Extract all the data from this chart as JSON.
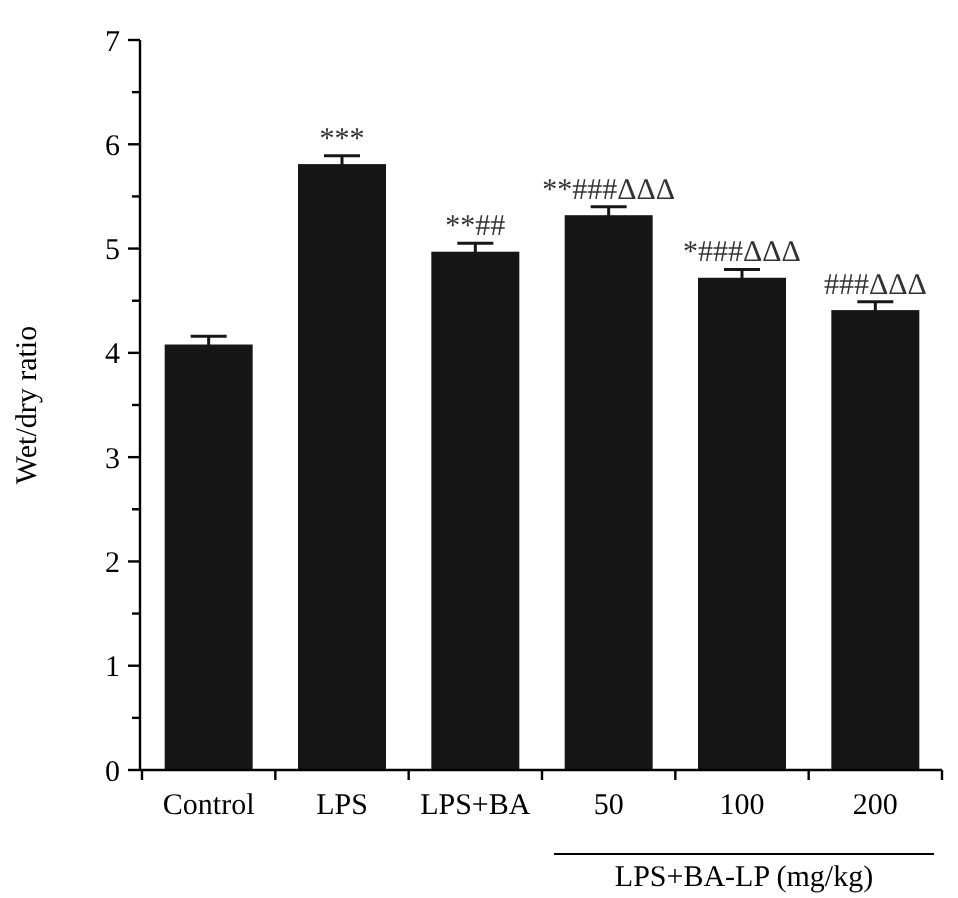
{
  "chart_data": {
    "type": "bar",
    "ylabel": "Wet/dry ratio",
    "categories": [
      "Control",
      "LPS",
      "LPS+BA",
      "50",
      "100",
      "200"
    ],
    "values": [
      4.08,
      5.81,
      4.97,
      5.32,
      4.72,
      4.41
    ],
    "errors": [
      0.08,
      0.08,
      0.08,
      0.08,
      0.08,
      0.08
    ],
    "color": "#161616",
    "ylim": [
      0,
      7
    ],
    "yticks": [
      0,
      {
        "value": 0.5,
        "label": null
      },
      1,
      {
        "value": 1.5,
        "label": null
      },
      2,
      {
        "value": 2.5,
        "label": null
      },
      3,
      {
        "value": 3.5,
        "label": null
      },
      4,
      {
        "value": 4.5,
        "label": null
      },
      5,
      {
        "value": 5.5,
        "label": null
      },
      6,
      {
        "value": 6.5,
        "label": null
      },
      7
    ],
    "annotations": [
      {
        "text": "***",
        "x": "LPS",
        "y": 5.89
      },
      {
        "text": "**##",
        "x": "LPS+BA",
        "y": 5.05
      },
      {
        "text": "**###ΔΔΔ",
        "x": "50",
        "y": 5.4
      },
      {
        "text": "*###ΔΔΔ",
        "x": "100",
        "y": 4.8
      },
      {
        "text": "###ΔΔΔ",
        "x": "200",
        "y": 4.49
      },
      "LPS+BA-LP (mg/kg)"
    ],
    "grid": false
  }
}
